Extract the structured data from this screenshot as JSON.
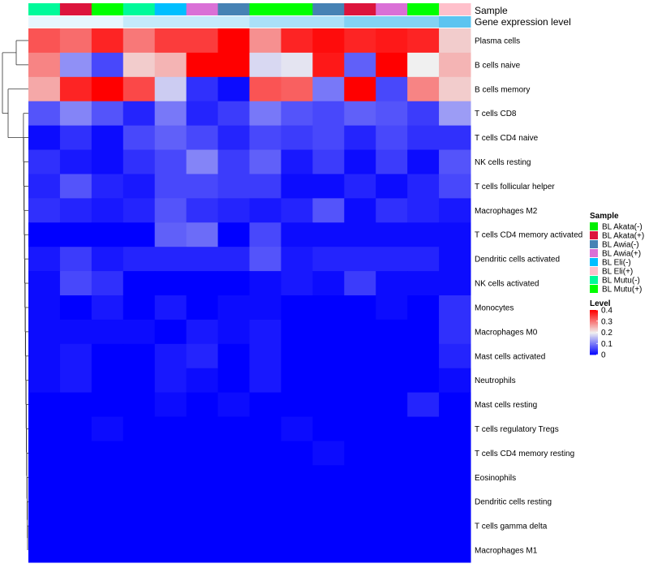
{
  "chart_data": {
    "type": "heatmap",
    "title": "",
    "annotation_labels": {
      "sample": "Sample",
      "gene_expression": "Gene expression level"
    },
    "columns": [
      "BL Mutu(-)",
      "BL Akata(+)",
      "BL Mutu(+)",
      "BL Mutu(-)",
      "BL Eli(-)",
      "BL Awia(+)",
      "BL Awia(-)",
      "BL Mutu(+)",
      "BL Mutu(+)",
      "BL Awia(-)",
      "BL Akata(+)",
      "BL Awia(+)",
      "BL Mutu(+)",
      "BL Eli(+)"
    ],
    "gene_expression_level": [
      0.02,
      0.02,
      0.02,
      0.15,
      0.15,
      0.15,
      0.15,
      0.25,
      0.25,
      0.25,
      0.4,
      0.4,
      0.4,
      0.55
    ],
    "rows": [
      "Plasma cells",
      "B cells naive",
      "B cells memory",
      "T cells CD8",
      "T cells CD4 naive",
      "NK cells resting",
      "T cells follicular helper",
      "Macrophages M2",
      "T cells CD4 memory activated",
      "Dendritic cells activated",
      "NK cells activated",
      "Monocytes",
      "Macrophages M0",
      "Mast cells activated",
      "Neutrophils",
      "Mast cells resting",
      "T cells regulatory  Tregs",
      "T cells CD4 memory resting",
      "Eosinophils",
      "Dendritic cells resting",
      "T cells gamma delta",
      "Macrophages M1"
    ],
    "values": [
      [
        0.33,
        0.31,
        0.37,
        0.3,
        0.35,
        0.35,
        0.4,
        0.28,
        0.37,
        0.39,
        0.37,
        0.38,
        0.37,
        0.23
      ],
      [
        0.29,
        0.12,
        0.06,
        0.23,
        0.25,
        0.42,
        0.42,
        0.18,
        0.19,
        0.38,
        0.08,
        0.42,
        0.2,
        0.25
      ],
      [
        0.26,
        0.37,
        0.42,
        0.34,
        0.17,
        0.04,
        0.01,
        0.33,
        0.32,
        0.1,
        0.41,
        0.06,
        0.29,
        0.23
      ],
      [
        0.07,
        0.11,
        0.07,
        0.03,
        0.1,
        0.03,
        0.05,
        0.1,
        0.07,
        0.06,
        0.08,
        0.07,
        0.05,
        0.13
      ],
      [
        0.01,
        0.04,
        0.01,
        0.06,
        0.08,
        0.06,
        0.03,
        0.06,
        0.05,
        0.06,
        0.03,
        0.06,
        0.04,
        0.04
      ],
      [
        0.04,
        0.02,
        0.01,
        0.04,
        0.06,
        0.11,
        0.05,
        0.08,
        0.02,
        0.05,
        0.01,
        0.05,
        0.01,
        0.07
      ],
      [
        0.03,
        0.07,
        0.03,
        0.02,
        0.06,
        0.06,
        0.05,
        0.05,
        0.01,
        0.01,
        0.03,
        0.01,
        0.03,
        0.06
      ],
      [
        0.04,
        0.03,
        0.02,
        0.03,
        0.07,
        0.04,
        0.03,
        0.02,
        0.03,
        0.07,
        0.01,
        0.04,
        0.03,
        0.02
      ],
      [
        0.0,
        0.0,
        0.0,
        0.0,
        0.08,
        0.09,
        0.0,
        0.06,
        0.01,
        0.01,
        0.01,
        0.01,
        0.01,
        0.01
      ],
      [
        0.02,
        0.05,
        0.02,
        0.03,
        0.03,
        0.03,
        0.03,
        0.07,
        0.02,
        0.03,
        0.03,
        0.03,
        0.03,
        0.01
      ],
      [
        0.01,
        0.06,
        0.04,
        0.0,
        0.0,
        0.0,
        0.0,
        0.01,
        0.02,
        0.01,
        0.05,
        0.01,
        0.01,
        0.01
      ],
      [
        0.01,
        0.0,
        0.02,
        0.0,
        0.02,
        0.0,
        0.01,
        0.01,
        0.0,
        0.0,
        0.0,
        0.01,
        0.0,
        0.04
      ],
      [
        0.01,
        0.01,
        0.01,
        0.01,
        0.0,
        0.02,
        0.01,
        0.02,
        0.0,
        0.0,
        0.0,
        0.0,
        0.0,
        0.04
      ],
      [
        0.01,
        0.02,
        0.0,
        0.0,
        0.02,
        0.03,
        0.0,
        0.02,
        0.0,
        0.0,
        0.0,
        0.0,
        0.0,
        0.03
      ],
      [
        0.01,
        0.02,
        0.0,
        0.0,
        0.02,
        0.01,
        0.0,
        0.02,
        0.0,
        0.0,
        0.0,
        0.0,
        0.0,
        0.01
      ],
      [
        0.0,
        0.0,
        0.0,
        0.0,
        0.01,
        0.0,
        0.01,
        0.0,
        0.0,
        0.0,
        0.0,
        0.0,
        0.03,
        0.0
      ],
      [
        0.0,
        0.0,
        0.01,
        0.0,
        0.0,
        0.0,
        0.0,
        0.0,
        0.01,
        0.0,
        0.0,
        0.0,
        0.0,
        0.0
      ],
      [
        0.0,
        0.0,
        0.0,
        0.0,
        0.0,
        0.0,
        0.0,
        0.0,
        0.0,
        0.01,
        0.0,
        0.0,
        0.0,
        0.0
      ],
      [
        0.0,
        0.0,
        0.0,
        0.0,
        0.0,
        0.0,
        0.0,
        0.0,
        0.0,
        0.0,
        0.0,
        0.0,
        0.0,
        0.0
      ],
      [
        0.0,
        0.0,
        0.0,
        0.0,
        0.0,
        0.0,
        0.0,
        0.0,
        0.0,
        0.0,
        0.0,
        0.0,
        0.0,
        0.0
      ],
      [
        0.0,
        0.0,
        0.0,
        0.0,
        0.0,
        0.0,
        0.0,
        0.0,
        0.0,
        0.0,
        0.0,
        0.0,
        0.0,
        0.0
      ],
      [
        0.0,
        0.0,
        0.0,
        0.0,
        0.0,
        0.0,
        0.0,
        0.0,
        0.0,
        0.0,
        0.0,
        0.0,
        0.0,
        0.0
      ]
    ],
    "color_scale": {
      "min": 0,
      "mid": 0.2,
      "max": 0.4,
      "low": "#0000ff",
      "mid_color": "#f0f0f0",
      "high": "#ff0000"
    },
    "sample_legend": {
      "title": "Sample",
      "items": [
        {
          "label": "BL Akata(-)",
          "color": "#00ee00"
        },
        {
          "label": "BL Akata(+)",
          "color": "#dc143c"
        },
        {
          "label": "BL Awia(-)",
          "color": "#4682b4"
        },
        {
          "label": "BL Awia(+)",
          "color": "#da70d6"
        },
        {
          "label": "BL Eli(-)",
          "color": "#00bfff"
        },
        {
          "label": "BL Eli(+)",
          "color": "#ffc0cb"
        },
        {
          "label": "BL Mutu(-)",
          "color": "#00fa9a"
        },
        {
          "label": "BL Mutu(+)",
          "color": "#00ff00"
        }
      ]
    },
    "level_legend": {
      "title": "Level",
      "ticks": [
        "0.4",
        "0.3",
        "0.2",
        "0.1",
        "0"
      ],
      "tick_values": [
        0.4,
        0.3,
        0.2,
        0.1,
        0
      ]
    }
  }
}
